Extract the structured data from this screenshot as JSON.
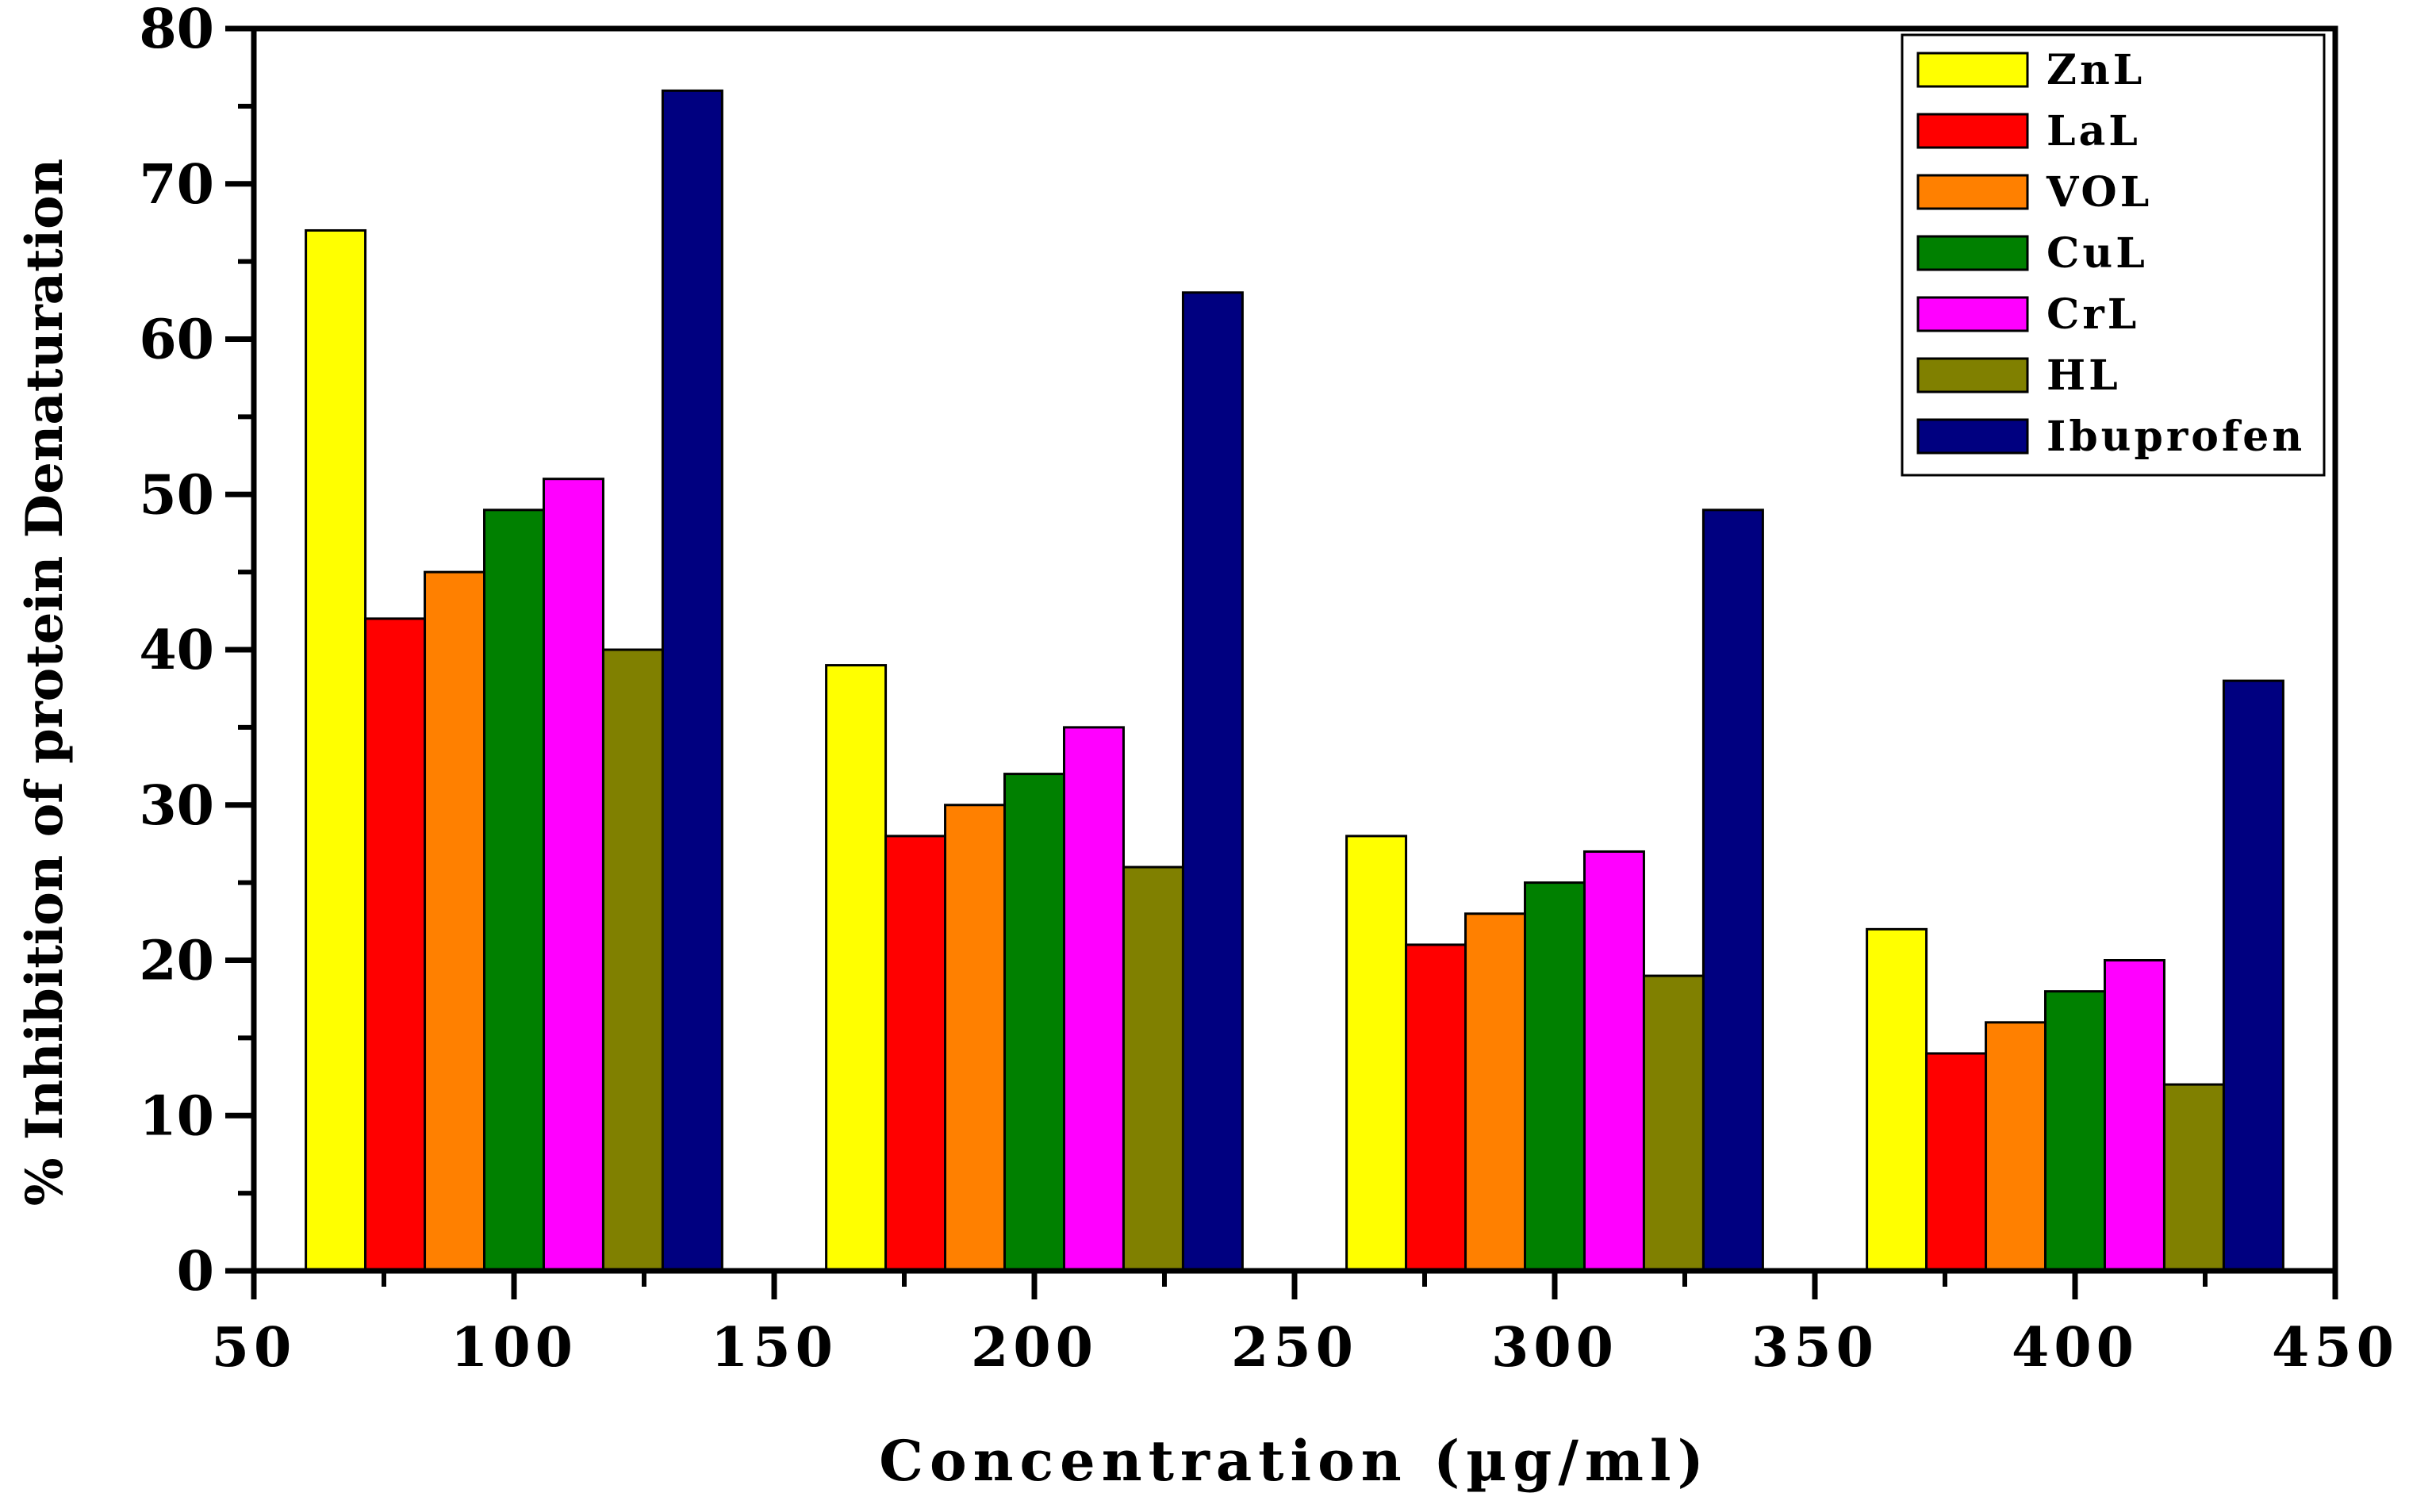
{
  "chart_data": {
    "type": "bar",
    "title": "",
    "xlabel": "Concentration (µg/ml)",
    "ylabel": "% Inhibition of protein Denaturation",
    "xlim": [
      50,
      450
    ],
    "ylim": [
      0,
      80
    ],
    "xticks": [
      50,
      100,
      150,
      200,
      250,
      300,
      350,
      400,
      450
    ],
    "yticks": [
      0,
      10,
      20,
      30,
      40,
      50,
      60,
      70,
      80
    ],
    "grid": false,
    "legend_position": "top-right",
    "group_centers": [
      100,
      200,
      300,
      400
    ],
    "group_width": 80,
    "series": [
      {
        "name": "ZnL",
        "color": "#ffff00",
        "values": [
          67,
          39,
          28,
          22
        ]
      },
      {
        "name": "LaL",
        "color": "#ff0000",
        "values": [
          42,
          28,
          21,
          14
        ]
      },
      {
        "name": "VOL",
        "color": "#ff8000",
        "values": [
          45,
          30,
          23,
          16
        ]
      },
      {
        "name": "CuL",
        "color": "#008000",
        "values": [
          49,
          32,
          25,
          18
        ]
      },
      {
        "name": "CrL",
        "color": "#ff00ff",
        "values": [
          51,
          35,
          27,
          20
        ]
      },
      {
        "name": "HL",
        "color": "#808000",
        "values": [
          40,
          26,
          19,
          12
        ]
      },
      {
        "name": "Ibuprofen",
        "color": "#000080",
        "values": [
          76,
          63,
          49,
          38
        ]
      }
    ]
  }
}
